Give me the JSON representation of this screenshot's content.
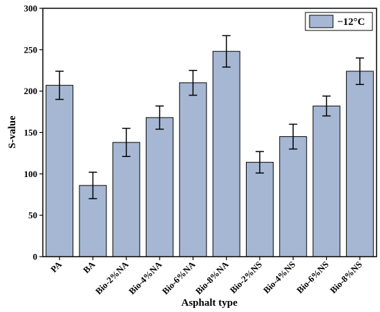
{
  "chart_data": {
    "type": "bar",
    "categories": [
      "PA",
      "BA",
      "Bio-2%NA",
      "Bio-4%NA",
      "Bio-6%NA",
      "Bio-8%NA",
      "Bio-2%NS",
      "Bio-4%NS",
      "Bio-6%NS",
      "Bio-8%NS"
    ],
    "series": [
      {
        "name": "−12°C",
        "values": [
          207,
          86,
          138,
          168,
          210,
          248,
          114,
          145,
          182,
          224
        ],
        "error": [
          17,
          16,
          17,
          14,
          15,
          19,
          13,
          15,
          12,
          16
        ],
        "color": "#a6b7d4"
      }
    ],
    "xlabel": "Asphalt type",
    "ylabel": "S-value",
    "ylim": [
      0,
      300
    ],
    "yticks": [
      0,
      50,
      100,
      150,
      200,
      250,
      300
    ],
    "legend": "top-right",
    "grid": false
  }
}
